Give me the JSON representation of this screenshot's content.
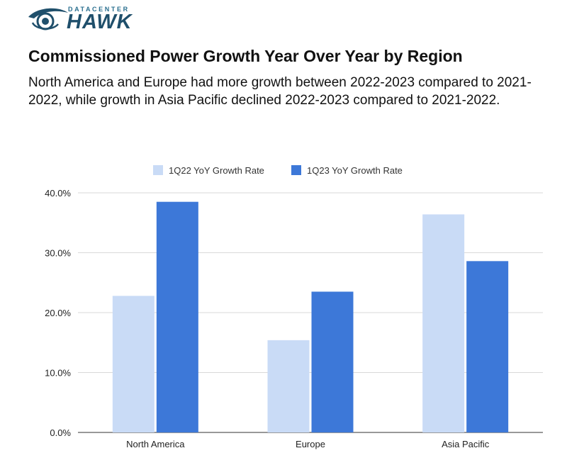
{
  "brand": {
    "top": "DATACENTER",
    "main": "HAWK"
  },
  "header": {
    "title": "Commissioned Power Growth Year Over Year by Region",
    "subtitle": "North America and Europe had more growth between 2022-2023 compared to 2021-2022, while growth in Asia Pacific declined 2022-2023 compared to 2021-2022."
  },
  "colors": {
    "series1": "#c9dbf6",
    "series2": "#3d78d8",
    "grid": "#d9d9d9",
    "axis": "#333333",
    "logo": "#1f4f6b"
  },
  "chart_data": {
    "type": "bar",
    "categories": [
      "North America",
      "Europe",
      "Asia Pacific"
    ],
    "series": [
      {
        "name": "1Q22 YoY Growth Rate",
        "values": [
          22.8,
          15.4,
          36.4
        ]
      },
      {
        "name": "1Q23 YoY Growth Rate",
        "values": [
          38.5,
          23.5,
          28.6
        ]
      }
    ],
    "yticks": [
      "0.0%",
      "10.0%",
      "20.0%",
      "30.0%",
      "40.0%"
    ],
    "ylim": [
      0,
      40
    ],
    "title": "",
    "xlabel": "",
    "ylabel": "",
    "grid": true,
    "legend": "top-center"
  }
}
